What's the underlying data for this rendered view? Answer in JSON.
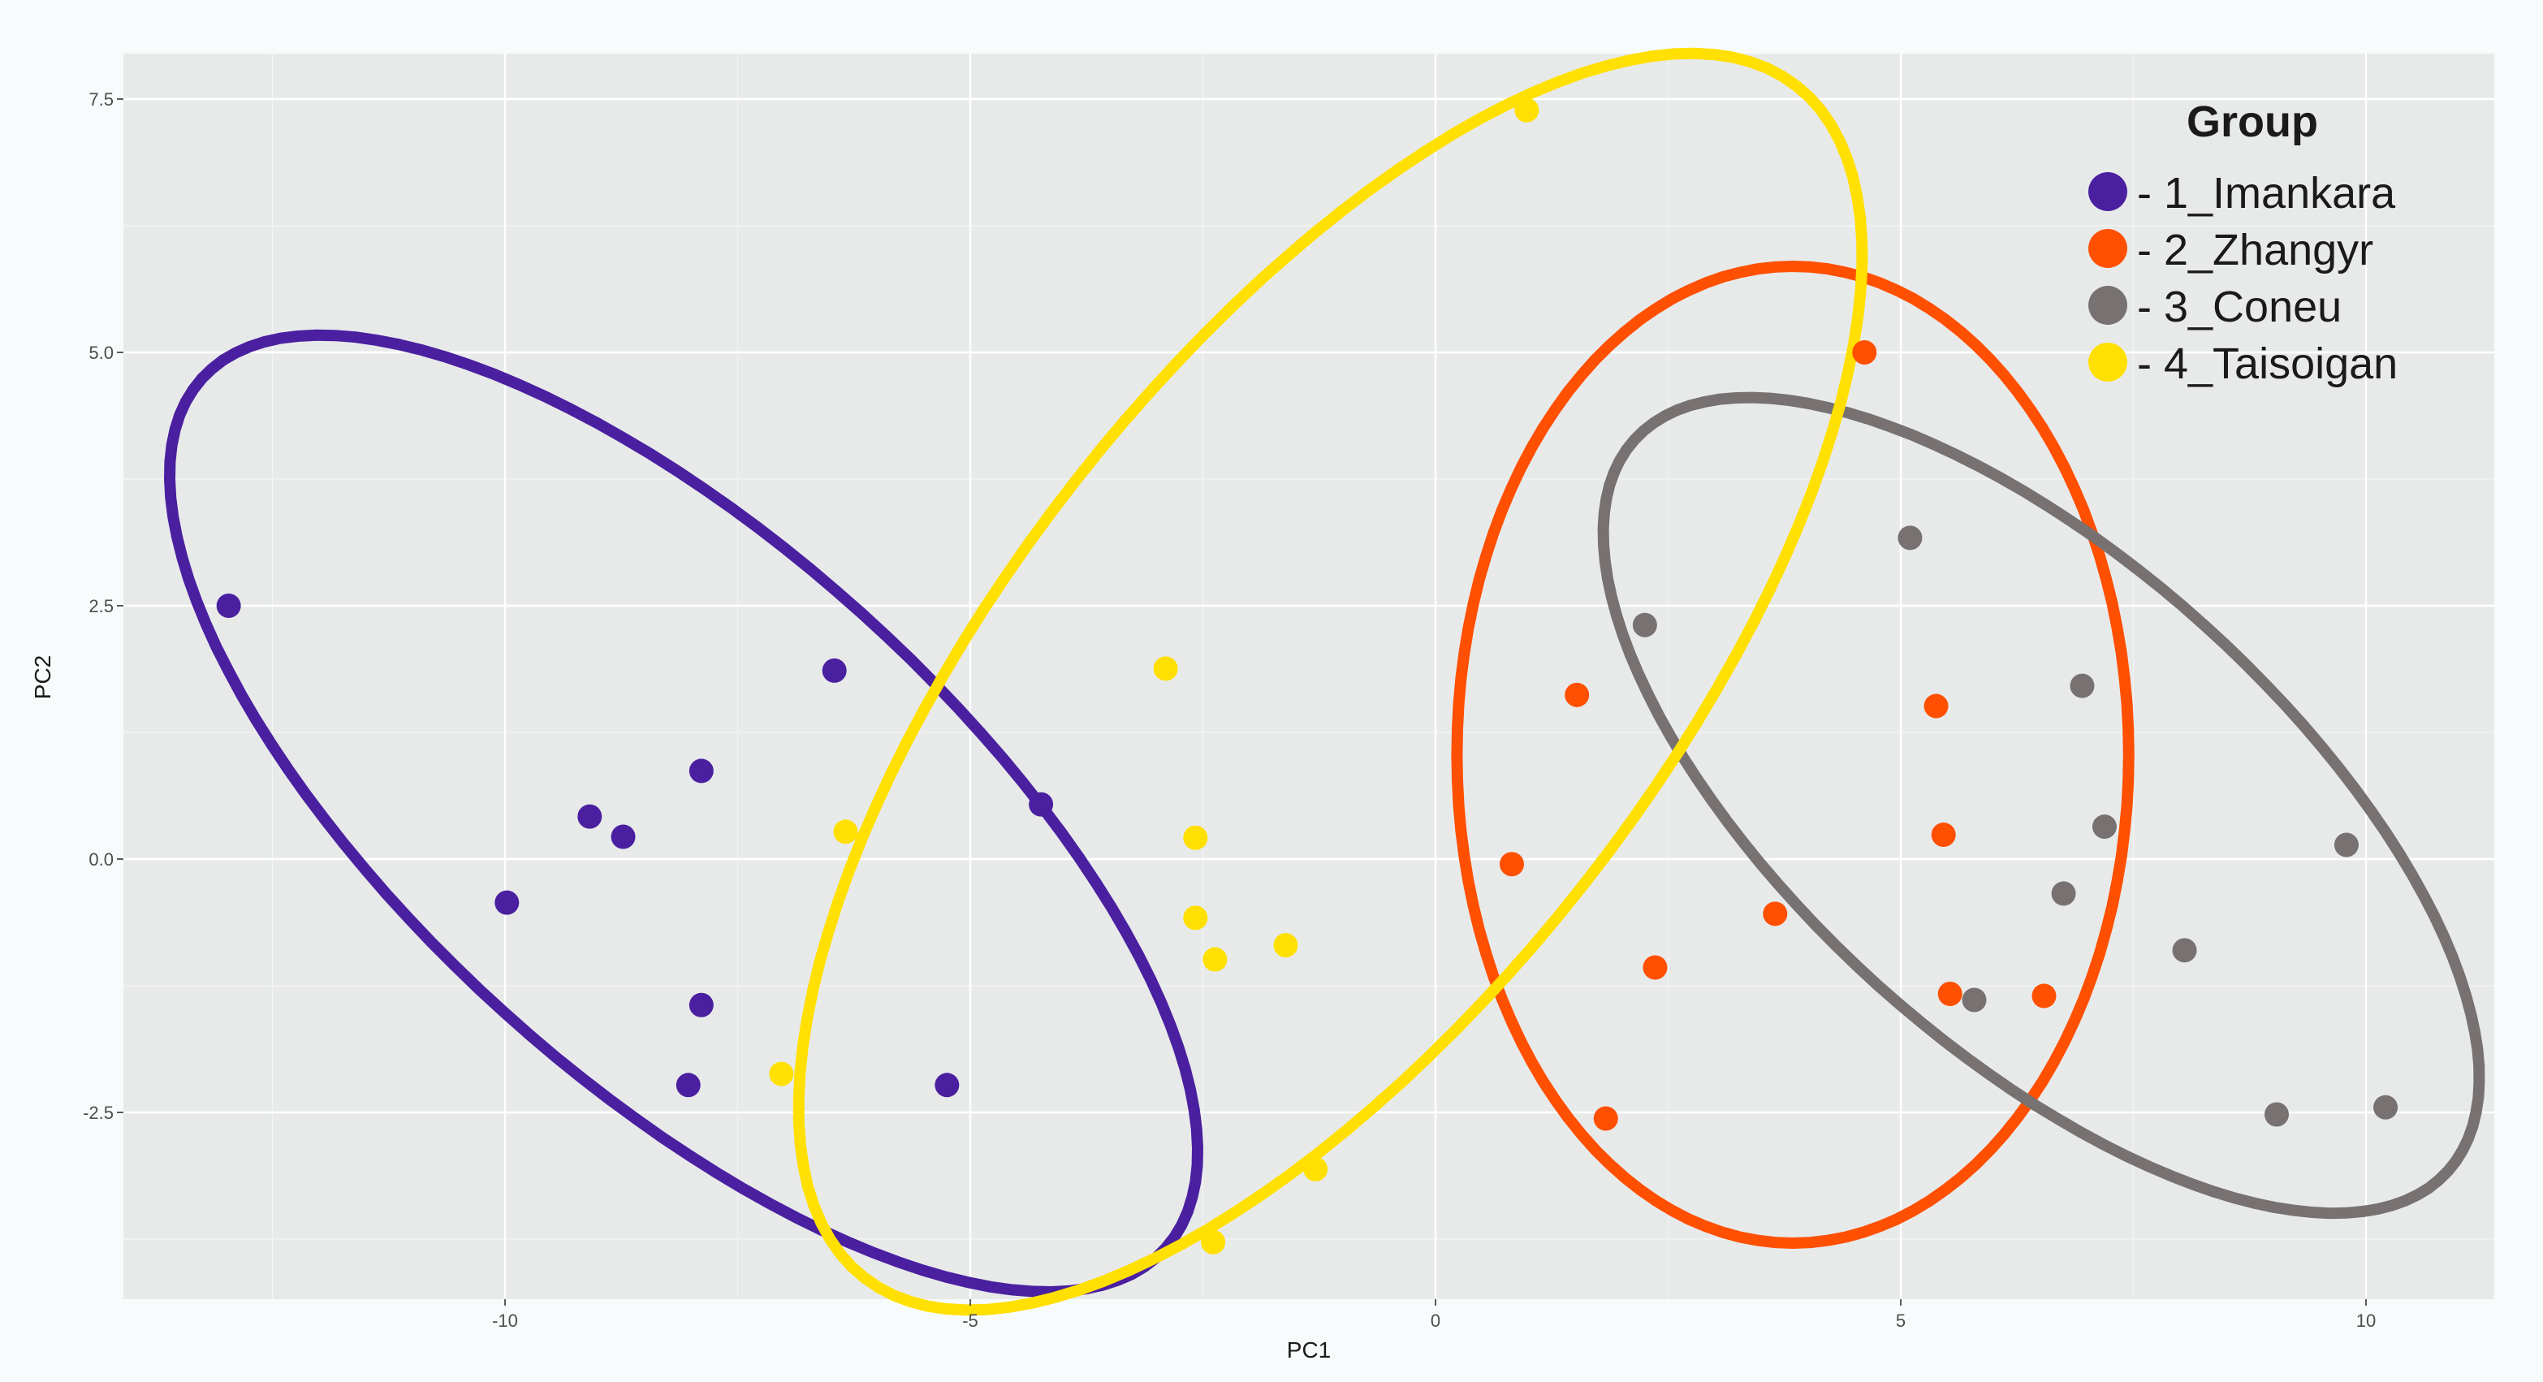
{
  "chart_data": {
    "type": "scatter",
    "title": "",
    "xlabel": "PC1",
    "ylabel": "PC2",
    "xlim": [
      -14.1,
      11.4
    ],
    "ylim": [
      -4.35,
      7.95
    ],
    "x_ticks": [
      -10,
      -5,
      0,
      5,
      10
    ],
    "x_tick_labels": [
      "-10",
      "-5",
      "0",
      "5",
      "10"
    ],
    "y_ticks": [
      -2.5,
      0,
      2.5,
      5,
      7.5
    ],
    "y_tick_labels": [
      "-2.5",
      "0.0",
      "2.5",
      "5.0",
      "7.5"
    ],
    "grid": true,
    "legend": {
      "title": "Group",
      "placement": "top-right"
    },
    "series": [
      {
        "name": "- 1_Imankara",
        "color": "#4a20a0",
        "points": [
          [
            -12.97,
            2.5
          ],
          [
            -6.46,
            1.86
          ],
          [
            -7.89,
            0.87
          ],
          [
            -9.09,
            0.42
          ],
          [
            -8.73,
            0.22
          ],
          [
            -9.98,
            -0.43
          ],
          [
            -4.24,
            0.54
          ],
          [
            -7.89,
            -1.44
          ],
          [
            -8.03,
            -2.23
          ],
          [
            -5.25,
            -2.23
          ]
        ],
        "ellipse": {
          "center": [
            -8.08,
            0.45
          ],
          "axis_a": [
            5.18,
            -4.29
          ],
          "axis_b": [
            -1.92,
            -1.97
          ]
        }
      },
      {
        "name": "- 2_Zhangyr",
        "color": "#ff4f00",
        "points": [
          [
            4.61,
            5.0
          ],
          [
            1.52,
            1.62
          ],
          [
            5.38,
            1.51
          ],
          [
            5.46,
            0.24
          ],
          [
            0.82,
            -0.05
          ],
          [
            3.65,
            -0.54
          ],
          [
            2.36,
            -1.07
          ],
          [
            5.53,
            -1.33
          ],
          [
            6.54,
            -1.35
          ],
          [
            1.83,
            -2.56
          ]
        ],
        "ellipse": {
          "center": [
            3.84,
            1.03
          ],
          "axis_a": [
            0,
            4.82
          ],
          "axis_b": [
            3.61,
            0
          ]
        }
      },
      {
        "name": "- 3_Coneu",
        "color": "#777171",
        "points": [
          [
            5.1,
            3.17
          ],
          [
            2.25,
            2.31
          ],
          [
            6.95,
            1.71
          ],
          [
            7.19,
            0.32
          ],
          [
            9.79,
            0.14
          ],
          [
            6.75,
            -0.34
          ],
          [
            8.05,
            -0.9
          ],
          [
            5.79,
            -1.39
          ],
          [
            9.04,
            -2.52
          ],
          [
            10.21,
            -2.45
          ]
        ],
        "ellipse": {
          "center": [
            6.51,
            0.53
          ],
          "axis_a": [
            4.37,
            -3.61
          ],
          "axis_b": [
            -1.75,
            -1.78
          ]
        }
      },
      {
        "name": "- 4_Taisoigan",
        "color": "#ffe000",
        "points": [
          [
            0.98,
            7.39
          ],
          [
            -2.9,
            1.88
          ],
          [
            -6.34,
            0.27
          ],
          [
            -2.58,
            0.21
          ],
          [
            -2.58,
            -0.58
          ],
          [
            -2.37,
            -0.99
          ],
          [
            -1.61,
            -0.85
          ],
          [
            -7.03,
            -2.12
          ],
          [
            -1.29,
            -3.06
          ],
          [
            -2.39,
            -3.78
          ]
        ],
        "ellipse": {
          "center": [
            -1.13,
            1.75
          ],
          "axis_a": [
            5.01,
            5.88
          ],
          "axis_b": [
            2.75,
            -1.97
          ]
        }
      }
    ]
  },
  "colors": {
    "panel": "#e8eaea",
    "grid": "#ffffff"
  }
}
